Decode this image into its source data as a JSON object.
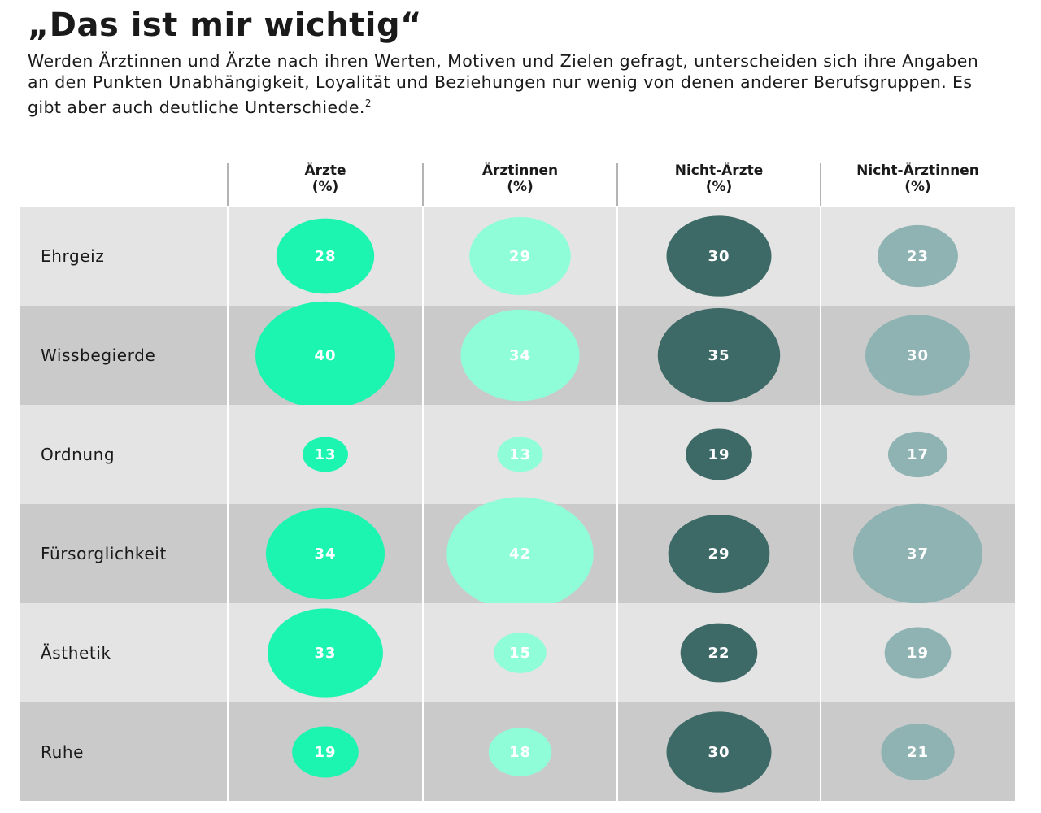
{
  "title": "„Das ist mir wichtig“",
  "subtitle": "Werden Ärztinnen und Ärzte nach ihren Werten, Motiven und Zielen gefragt, unterscheiden sich ihre Angaben an den Punkten Unabhängigkeit, Loyalität und Beziehungen nur wenig von denen anderer Berufsgruppen. Es gibt aber auch deutliche Unterschiede.",
  "footnote_mark": "2",
  "colors": {
    "Ärzte": "#1cf5b0",
    "Ärztinnen": "#8ffdd8",
    "Nicht-Ärzte": "#3d6967",
    "Nicht-Ärztinnen": "#8eb3b2",
    "row_light": "#e4e4e4",
    "row_dark": "#cacaca"
  },
  "chart_data": {
    "type": "table",
    "categories": [
      "Ehrgeiz",
      "Wissbegierde",
      "Ordnung",
      "Fürsorglichkeit",
      "Ästhetik",
      "Ruhe"
    ],
    "columns": [
      {
        "name": "Ärzte",
        "unit": "(%)"
      },
      {
        "name": "Ärztinnen",
        "unit": "(%)"
      },
      {
        "name": "Nicht-Ärzte",
        "unit": "(%)"
      },
      {
        "name": "Nicht-Ärztinnen",
        "unit": "(%)"
      }
    ],
    "series": [
      {
        "name": "Ärzte",
        "values": [
          28,
          40,
          13,
          34,
          33,
          19
        ]
      },
      {
        "name": "Ärztinnen",
        "values": [
          29,
          34,
          13,
          42,
          15,
          18
        ]
      },
      {
        "name": "Nicht-Ärzte",
        "values": [
          30,
          35,
          19,
          29,
          22,
          30
        ]
      },
      {
        "name": "Nicht-Ärztinnen",
        "values": [
          23,
          30,
          17,
          37,
          19,
          21
        ]
      }
    ]
  }
}
